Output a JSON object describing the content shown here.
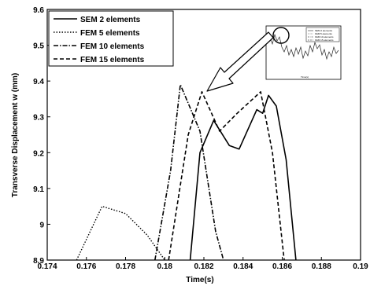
{
  "chart_data": {
    "type": "line",
    "xlabel": "Time(s)",
    "ylabel": "Transverse Displacement w (mm)",
    "xlim": [
      0.174,
      0.19
    ],
    "ylim": [
      8.9,
      9.6
    ],
    "xticks": [
      0.174,
      0.176,
      0.178,
      0.18,
      0.182,
      0.184,
      0.186,
      0.188,
      0.19
    ],
    "yticks": [
      8.9,
      9.0,
      9.1,
      9.2,
      9.3,
      9.4,
      9.5,
      9.6
    ],
    "xtick_labels": [
      "0.174",
      "0.176",
      "0.178",
      "0.18",
      "0.182",
      "0.184",
      "0.186",
      "0.188",
      "0.19"
    ],
    "ytick_labels": [
      "8.9",
      "9",
      "9.1",
      "9.2",
      "9.3",
      "9.4",
      "9.5",
      "9.6"
    ],
    "grid": false,
    "legend_position": "top-left",
    "series": [
      {
        "name": "SEM 2 elements",
        "style": "solid",
        "color": "#000000",
        "points": [
          [
            0.1813,
            8.9
          ],
          [
            0.1818,
            9.2
          ],
          [
            0.1825,
            9.29
          ],
          [
            0.1833,
            9.22
          ],
          [
            0.1838,
            9.21
          ],
          [
            0.1847,
            9.32
          ],
          [
            0.185,
            9.31
          ],
          [
            0.1853,
            9.36
          ],
          [
            0.1857,
            9.33
          ],
          [
            0.1862,
            9.18
          ],
          [
            0.1867,
            8.9
          ]
        ]
      },
      {
        "name": "FEM 5 elements",
        "style": "dotted",
        "color": "#000000",
        "points": [
          [
            0.1755,
            8.9
          ],
          [
            0.1768,
            9.05
          ],
          [
            0.178,
            9.03
          ],
          [
            0.1791,
            8.97
          ],
          [
            0.18,
            8.9
          ]
        ]
      },
      {
        "name": "FEM 10 elements",
        "style": "dashdot",
        "color": "#000000",
        "points": [
          [
            0.1795,
            8.9
          ],
          [
            0.1803,
            9.15
          ],
          [
            0.1808,
            9.39
          ],
          [
            0.1818,
            9.26
          ],
          [
            0.1826,
            8.98
          ],
          [
            0.183,
            8.9
          ]
        ]
      },
      {
        "name": "FEM 15 elements",
        "style": "dashed",
        "color": "#000000",
        "points": [
          [
            0.1802,
            8.9
          ],
          [
            0.1812,
            9.25
          ],
          [
            0.1819,
            9.37
          ],
          [
            0.1828,
            9.26
          ],
          [
            0.1837,
            9.31
          ],
          [
            0.1849,
            9.37
          ],
          [
            0.1855,
            9.2
          ],
          [
            0.1861,
            8.9
          ]
        ]
      }
    ],
    "inset": {
      "legend": [
        "SEM 2 elements",
        "FEM 5 elements",
        "FEM 10 elements",
        "FEM 15 elements"
      ],
      "xlabel": "Time(s)",
      "highlight": "circle"
    }
  }
}
